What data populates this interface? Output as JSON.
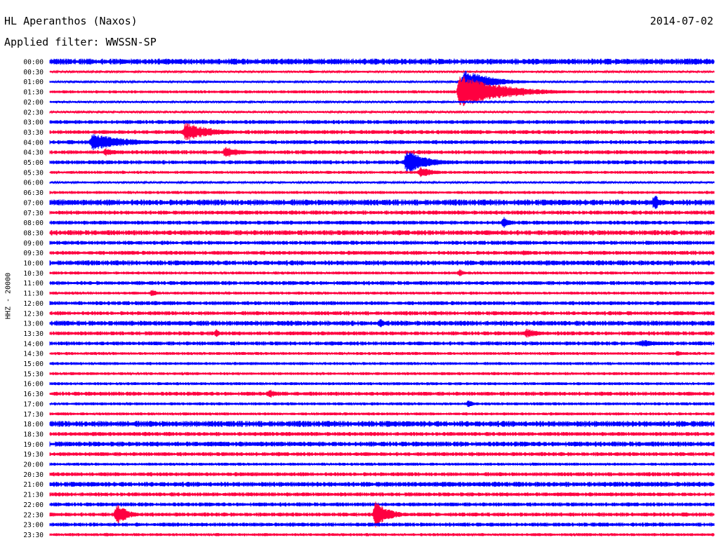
{
  "header": {
    "station": "HL Aperanthos (Naxos)",
    "date": "2014-07-02",
    "filter_text": "Applied filter: WWSSN-SP"
  },
  "colors": {
    "even_rows": "#0000ff",
    "odd_rows": "#ff0040",
    "background": "#ffffff"
  },
  "chart_data": {
    "type": "line",
    "title": "HL Aperanthos (Naxos)",
    "subtitle": "Applied filter: WWSSN-SP",
    "date": "2014-07-02",
    "ylabel": "HHZ - 20000",
    "xlabel": "",
    "grid": false,
    "row_labels": [
      "00:00",
      "00:30",
      "01:00",
      "01:30",
      "02:00",
      "02:30",
      "03:00",
      "03:30",
      "04:00",
      "04:30",
      "05:00",
      "05:30",
      "06:00",
      "06:30",
      "07:00",
      "07:30",
      "08:00",
      "08:30",
      "09:00",
      "09:30",
      "10:00",
      "10:30",
      "11:00",
      "11:30",
      "12:00",
      "12:30",
      "13:00",
      "13:30",
      "14:00",
      "14:30",
      "15:00",
      "15:30",
      "16:00",
      "16:30",
      "17:00",
      "17:30",
      "18:00",
      "18:30",
      "19:00",
      "19:30",
      "20:00",
      "20:30",
      "21:00",
      "21:30",
      "22:00",
      "22:30",
      "23:00",
      "23:30"
    ],
    "row_colors": [
      "blue",
      "red"
    ],
    "row_span_minutes": 30,
    "baseline_noise": [
      3,
      1,
      1,
      1.5,
      1,
      1,
      2,
      2,
      2,
      2,
      2,
      1.5,
      1,
      1.5,
      3,
      2,
      2,
      2.5,
      2,
      2,
      2.5,
      1.5,
      2,
      1.5,
      2,
      2,
      2.5,
      2,
      2,
      1.5,
      1.5,
      1.5,
      1.5,
      2,
      1.5,
      1.5,
      3,
      2,
      2.5,
      2,
      1.5,
      2,
      2.5,
      2,
      2,
      2,
      2,
      1.5
    ],
    "events": [
      {
        "row": 1,
        "start_min": 11.6,
        "amplitude": 3,
        "duration_min": 1.2
      },
      {
        "row": 1,
        "start_min": 18.8,
        "amplitude": 2,
        "duration_min": 1.0
      },
      {
        "row": 2,
        "start_min": 18.6,
        "amplitude": 18,
        "duration_min": 2.8
      },
      {
        "row": 3,
        "start_min": 18.4,
        "amplitude": 26,
        "duration_min": 4.2
      },
      {
        "row": 6,
        "start_min": 9.4,
        "amplitude": 3,
        "duration_min": 1.0
      },
      {
        "row": 7,
        "start_min": 6.0,
        "amplitude": 14,
        "duration_min": 2.8
      },
      {
        "row": 8,
        "start_min": 1.8,
        "amplitude": 13,
        "duration_min": 3.8
      },
      {
        "row": 9,
        "start_min": 2.4,
        "amplitude": 6,
        "duration_min": 1.4
      },
      {
        "row": 9,
        "start_min": 7.8,
        "amplitude": 9,
        "duration_min": 1.6
      },
      {
        "row": 9,
        "start_min": 22.0,
        "amplitude": 5,
        "duration_min": 0.4
      },
      {
        "row": 10,
        "start_min": 9.3,
        "amplitude": 4,
        "duration_min": 0.8
      },
      {
        "row": 10,
        "start_min": 16.0,
        "amplitude": 18,
        "duration_min": 2.2
      },
      {
        "row": 10,
        "start_min": 25.9,
        "amplitude": 4,
        "duration_min": 0.6
      },
      {
        "row": 11,
        "start_min": 16.6,
        "amplitude": 8,
        "duration_min": 1.6
      },
      {
        "row": 11,
        "start_min": 3.2,
        "amplitude": 3,
        "duration_min": 0.4
      },
      {
        "row": 14,
        "start_min": 27.2,
        "amplitude": 14,
        "duration_min": 0.5
      },
      {
        "row": 16,
        "start_min": 9.8,
        "amplitude": 4,
        "duration_min": 0.8
      },
      {
        "row": 16,
        "start_min": 20.4,
        "amplitude": 10,
        "duration_min": 0.6
      },
      {
        "row": 17,
        "start_min": 26.1,
        "amplitude": 4,
        "duration_min": 0.4
      },
      {
        "row": 19,
        "start_min": 21.3,
        "amplitude": 5,
        "duration_min": 0.5
      },
      {
        "row": 21,
        "start_min": 18.4,
        "amplitude": 6,
        "duration_min": 0.5
      },
      {
        "row": 22,
        "start_min": 3.0,
        "amplitude": 3,
        "duration_min": 0.6
      },
      {
        "row": 23,
        "start_min": 4.5,
        "amplitude": 6,
        "duration_min": 0.6
      },
      {
        "row": 25,
        "start_min": 26.0,
        "amplitude": 4,
        "duration_min": 0.5
      },
      {
        "row": 26,
        "start_min": 14.8,
        "amplitude": 8,
        "duration_min": 0.4
      },
      {
        "row": 27,
        "start_min": 7.4,
        "amplitude": 7,
        "duration_min": 0.4
      },
      {
        "row": 27,
        "start_min": 21.4,
        "amplitude": 7,
        "duration_min": 1.6
      },
      {
        "row": 28,
        "start_min": 26.6,
        "amplitude": 6,
        "duration_min": 2.0
      },
      {
        "row": 29,
        "start_min": 28.2,
        "amplitude": 4,
        "duration_min": 1.0
      },
      {
        "row": 32,
        "start_min": 4.8,
        "amplitude": 3,
        "duration_min": 0.6
      },
      {
        "row": 33,
        "start_min": 9.8,
        "amplitude": 7,
        "duration_min": 0.8
      },
      {
        "row": 34,
        "start_min": 18.8,
        "amplitude": 7,
        "duration_min": 0.4
      },
      {
        "row": 45,
        "start_min": 2.9,
        "amplitude": 16,
        "duration_min": 1.2
      },
      {
        "row": 45,
        "start_min": 14.6,
        "amplitude": 20,
        "duration_min": 1.4
      },
      {
        "row": 47,
        "start_min": 2.4,
        "amplitude": 3,
        "duration_min": 1.8
      }
    ]
  }
}
